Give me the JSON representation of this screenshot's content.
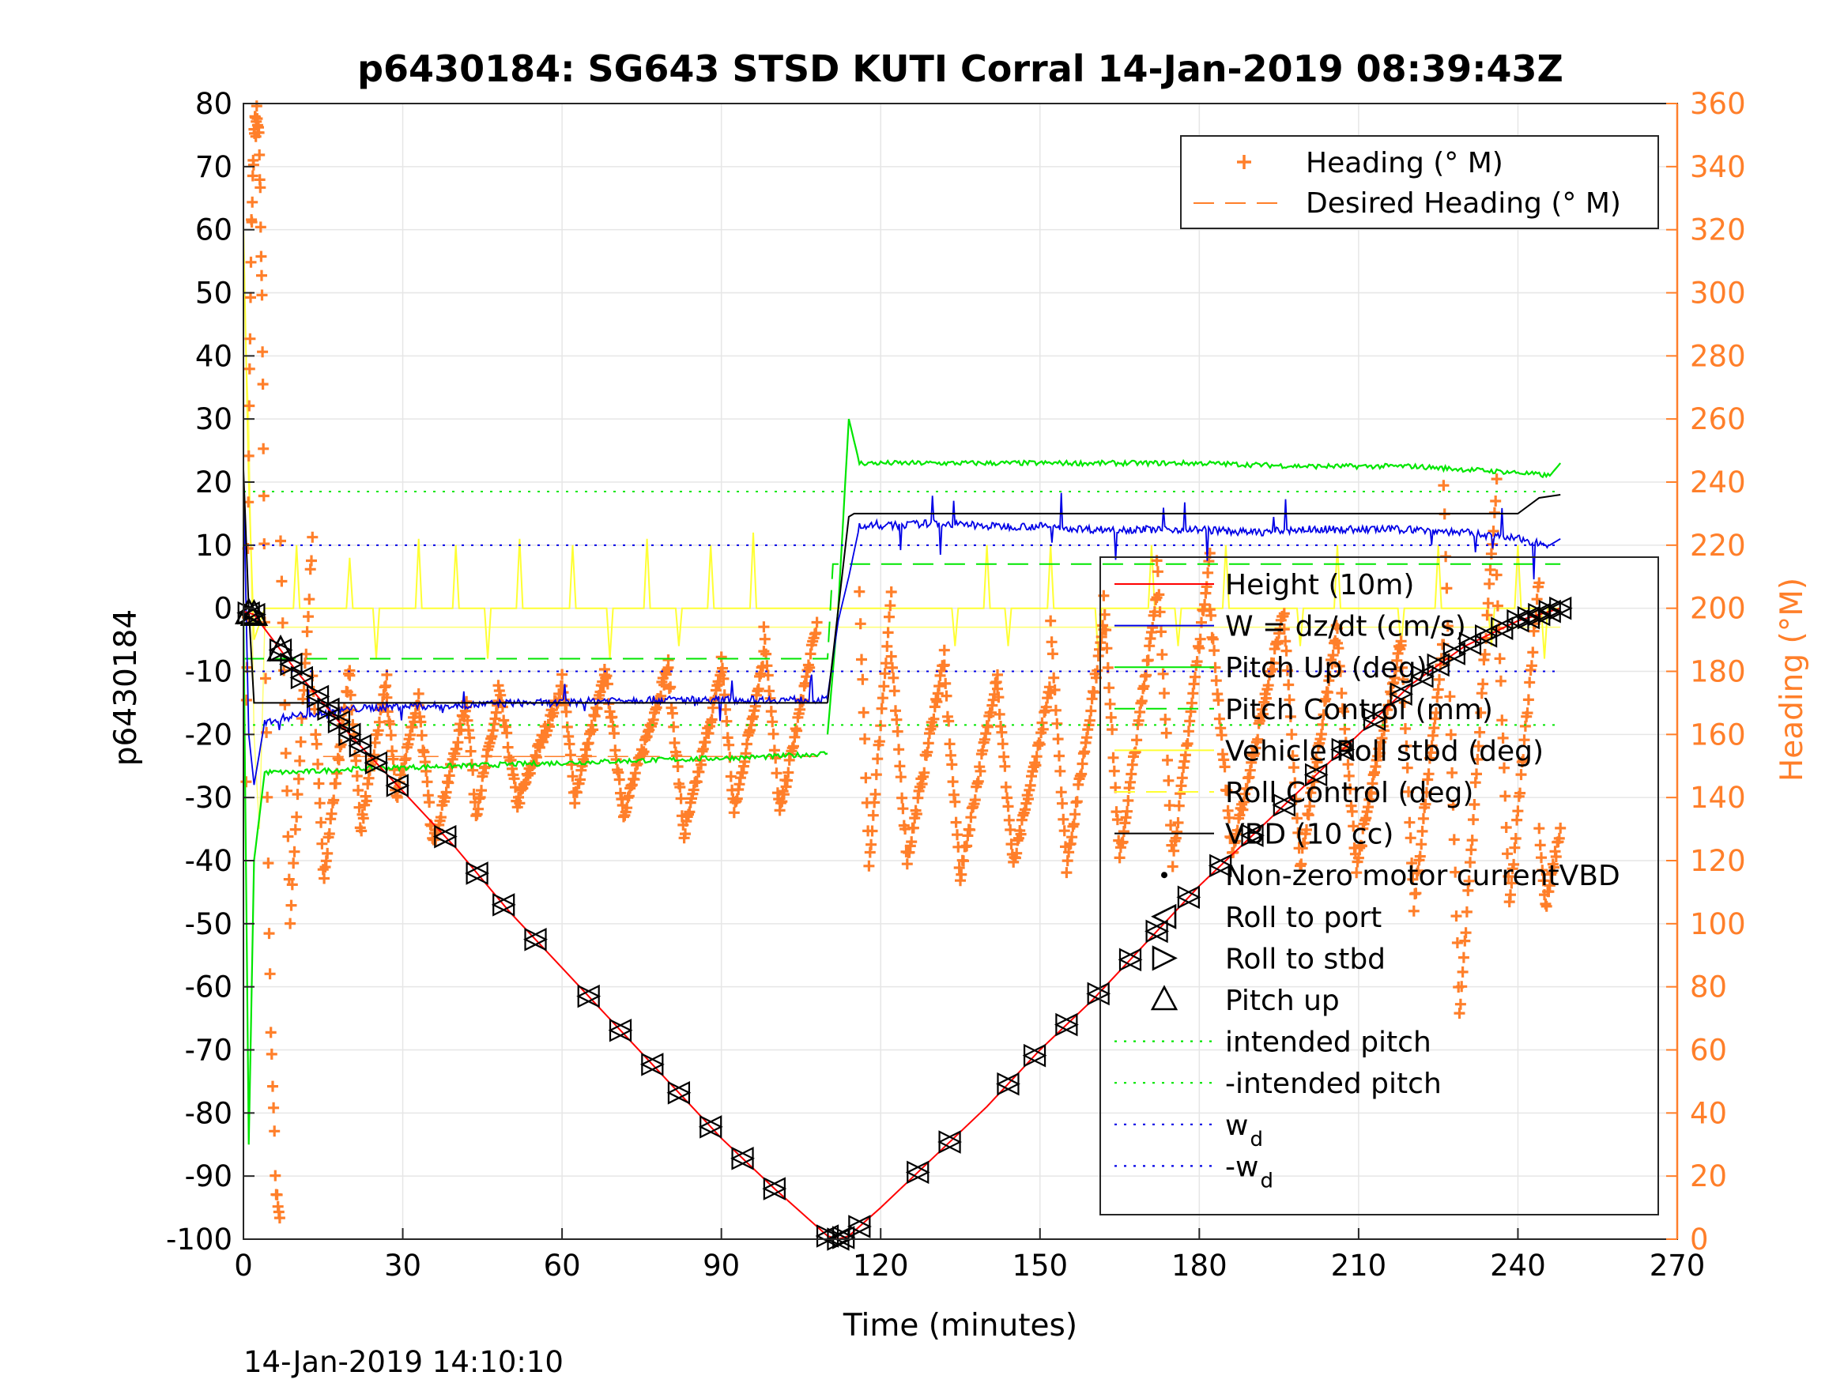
{
  "chart_data": {
    "type": "line",
    "title": "p6430184: SG643 STSD KUTI Corral 14-Jan-2019 08:39:43Z",
    "xlabel": "Time (minutes)",
    "ylabel": "p6430184",
    "ylabel_right": "Heading (°M)",
    "footer": "14-Jan-2019 14:10:10",
    "xlim": [
      0,
      270
    ],
    "ylim": [
      -100,
      80
    ],
    "ylim_right": [
      0,
      360
    ],
    "xticks": [
      "0",
      "30",
      "60",
      "90",
      "120",
      "150",
      "180",
      "210",
      "240",
      "270"
    ],
    "yticks": [
      "80",
      "70",
      "60",
      "50",
      "40",
      "30",
      "20",
      "10",
      "0",
      "-10",
      "-20",
      "-30",
      "-40",
      "-50",
      "-60",
      "-70",
      "-80",
      "-90",
      "-100"
    ],
    "yticks_right": [
      "360",
      "340",
      "320",
      "300",
      "280",
      "260",
      "240",
      "220",
      "200",
      "180",
      "160",
      "140",
      "120",
      "100",
      "80",
      "60",
      "40",
      "20",
      "0"
    ],
    "grid": true,
    "colors": {
      "heading": "#ff7f2a",
      "height": "#ff0000",
      "w": "#0000e6",
      "pitch": "#00e600",
      "roll": "#ffff33",
      "vbd": "#000000",
      "axis_right": "#ff7f2a"
    },
    "legend_top": {
      "placement": "top-right",
      "entries": [
        "Heading (° M)",
        "Desired Heading (° M)"
      ]
    },
    "legend_main": {
      "placement": "right",
      "entries": [
        "Height (10m)",
        "W = dz/dt (cm/s)",
        "Pitch Up (deg)",
        "Pitch Control (mm)",
        "Vehicle Roll stbd (deg)",
        "Roll Control (deg)",
        "VBD (10 cc)",
        "Non-zero motor currentVBD",
        "Roll to port",
        "Roll to stbd",
        "Pitch up",
        "intended pitch",
        "-intended pitch",
        "w",
        "-w"
      ],
      "subscript": "d"
    },
    "height_path": [
      [
        0,
        -0.5
      ],
      [
        2,
        -1
      ],
      [
        10,
        -10
      ],
      [
        20,
        -20
      ],
      [
        30,
        -29
      ],
      [
        40,
        -38
      ],
      [
        50,
        -48
      ],
      [
        60,
        -57
      ],
      [
        70,
        -66
      ],
      [
        80,
        -75
      ],
      [
        90,
        -84
      ],
      [
        100,
        -92
      ],
      [
        110,
        -99.5
      ],
      [
        112,
        -100
      ],
      [
        114,
        -99.5
      ],
      [
        120,
        -95
      ],
      [
        130,
        -87
      ],
      [
        140,
        -79
      ],
      [
        150,
        -70
      ],
      [
        160,
        -62
      ],
      [
        170,
        -53
      ],
      [
        180,
        -44
      ],
      [
        190,
        -36
      ],
      [
        200,
        -28
      ],
      [
        210,
        -20
      ],
      [
        220,
        -12
      ],
      [
        230,
        -6
      ],
      [
        240,
        -2
      ],
      [
        248,
        0
      ]
    ],
    "marker_times": [
      1,
      2,
      7,
      9,
      11,
      14,
      16,
      18,
      20,
      22,
      25,
      29,
      38,
      44,
      49,
      55,
      65,
      71,
      77,
      82,
      88,
      94,
      100,
      110,
      112,
      113,
      116,
      127,
      133,
      144,
      149,
      155,
      161,
      167,
      172,
      178,
      184,
      190,
      196,
      202,
      207,
      213,
      218,
      222,
      225,
      228,
      231,
      234,
      237,
      240,
      242,
      244,
      246,
      248
    ],
    "w_segments": [
      {
        "x": [
          0,
          1,
          2,
          4,
          10,
          20,
          30,
          40,
          50,
          60,
          70,
          80,
          90,
          100,
          110
        ],
        "y": [
          20,
          -20,
          -28,
          -18,
          -17,
          -16,
          -15.5,
          -15.5,
          -15,
          -15,
          -14.5,
          -14.5,
          -14.5,
          -14.5,
          -14.5
        ]
      },
      {
        "x": [
          110,
          112,
          114,
          116,
          120,
          130,
          140,
          150,
          160,
          170,
          180,
          190,
          200,
          210,
          220,
          230,
          240,
          246,
          248
        ],
        "y": [
          -14,
          -2,
          5,
          13,
          13,
          13.5,
          13,
          13,
          12.5,
          12.5,
          12.5,
          12,
          12.5,
          12.5,
          12.5,
          12,
          11,
          10,
          11
        ]
      }
    ],
    "pitch_segments": [
      {
        "x": [
          0,
          1,
          2,
          4,
          10,
          20,
          40,
          60,
          80,
          100,
          110
        ],
        "y": [
          0,
          -85,
          -40,
          -26,
          -26,
          -25.5,
          -25,
          -24.5,
          -24,
          -23.5,
          -23
        ]
      },
      {
        "x": [
          110,
          112,
          114,
          116,
          120,
          140,
          160,
          180,
          200,
          220,
          240,
          246,
          248
        ],
        "y": [
          -20,
          0,
          30,
          23,
          23,
          23,
          23,
          23,
          22.5,
          22.5,
          21.5,
          21,
          23
        ]
      }
    ],
    "pitch_control": {
      "x": [
        0,
        110,
        111,
        248
      ],
      "y": [
        -8,
        -8,
        7,
        7
      ]
    },
    "intended_pitch": 18.5,
    "wd": 10,
    "vbd_segments": [
      {
        "x": [
          0,
          1,
          2,
          110
        ],
        "y": [
          22,
          0,
          -15,
          -15
        ]
      },
      {
        "x": [
          110,
          114,
          115,
          200,
          240,
          244,
          248
        ],
        "y": [
          -15,
          14.5,
          15,
          15,
          15,
          17.5,
          18
        ]
      }
    ],
    "roll_spikes": [
      {
        "t": 10,
        "v": 10
      },
      {
        "t": 20,
        "v": 8
      },
      {
        "t": 25,
        "v": -8
      },
      {
        "t": 33,
        "v": 11
      },
      {
        "t": 40,
        "v": 10
      },
      {
        "t": 46,
        "v": -8
      },
      {
        "t": 52,
        "v": 11
      },
      {
        "t": 62,
        "v": 10
      },
      {
        "t": 69,
        "v": -8
      },
      {
        "t": 76,
        "v": 11
      },
      {
        "t": 82,
        "v": -6
      },
      {
        "t": 88,
        "v": 10
      },
      {
        "t": 96,
        "v": 12
      },
      {
        "t": 134,
        "v": -6
      },
      {
        "t": 140,
        "v": 10
      },
      {
        "t": 144,
        "v": -6
      },
      {
        "t": 152,
        "v": 10
      },
      {
        "t": 161,
        "v": -8
      },
      {
        "t": 171,
        "v": 10
      },
      {
        "t": 176,
        "v": -6
      },
      {
        "t": 185,
        "v": 10
      },
      {
        "t": 199,
        "v": -6
      },
      {
        "t": 206,
        "v": 10
      },
      {
        "t": 218,
        "v": -6
      },
      {
        "t": 225,
        "v": 10
      },
      {
        "t": 235,
        "v": -6
      },
      {
        "t": 240,
        "v": 10
      },
      {
        "t": 245,
        "v": -8
      }
    ],
    "heading_start": [
      [
        0.5,
        150
      ],
      [
        1,
        250
      ],
      [
        1.5,
        320
      ],
      [
        2,
        350
      ],
      [
        2.5,
        355
      ],
      [
        3,
        345
      ],
      [
        3.5,
        300
      ],
      [
        4,
        200
      ],
      [
        5,
        80
      ],
      [
        6,
        20
      ],
      [
        7,
        5
      ]
    ],
    "heading_waves": [
      {
        "t0": 7,
        "t1": 13,
        "lo": 100,
        "hi": 222
      },
      {
        "t0": 13,
        "t1": 20,
        "lo": 115,
        "hi": 180
      },
      {
        "t0": 20,
        "t1": 27,
        "lo": 130,
        "hi": 178
      },
      {
        "t0": 27,
        "t1": 33,
        "lo": 140,
        "hi": 172
      },
      {
        "t0": 33,
        "t1": 42,
        "lo": 125,
        "hi": 170
      },
      {
        "t0": 42,
        "t1": 48,
        "lo": 135,
        "hi": 170
      },
      {
        "t0": 48,
        "t1": 60,
        "lo": 138,
        "hi": 175
      },
      {
        "t0": 60,
        "t1": 68,
        "lo": 140,
        "hi": 178
      },
      {
        "t0": 68,
        "t1": 80,
        "lo": 135,
        "hi": 182
      },
      {
        "t0": 80,
        "t1": 90,
        "lo": 128,
        "hi": 180
      },
      {
        "t0": 90,
        "t1": 98,
        "lo": 135,
        "hi": 185
      },
      {
        "t0": 98,
        "t1": 108,
        "lo": 135,
        "hi": 195
      },
      {
        "t0": 116,
        "t1": 122,
        "lo": 118,
        "hi": 205
      },
      {
        "t0": 122,
        "t1": 132,
        "lo": 120,
        "hi": 185
      },
      {
        "t0": 132,
        "t1": 142,
        "lo": 115,
        "hi": 180
      },
      {
        "t0": 142,
        "t1": 152,
        "lo": 118,
        "hi": 175
      },
      {
        "t0": 152,
        "t1": 162,
        "lo": 118,
        "hi": 195
      },
      {
        "t0": 162,
        "t1": 172,
        "lo": 120,
        "hi": 205
      },
      {
        "t0": 172,
        "t1": 182,
        "lo": 120,
        "hi": 217
      },
      {
        "t0": 182,
        "t1": 196,
        "lo": 122,
        "hi": 200
      },
      {
        "t0": 196,
        "t1": 206,
        "lo": 118,
        "hi": 195
      },
      {
        "t0": 206,
        "t1": 218,
        "lo": 118,
        "hi": 190
      },
      {
        "t0": 218,
        "t1": 226,
        "lo": 105,
        "hi": 190
      },
      {
        "t0": 226,
        "t1": 236,
        "lo": 70,
        "hi": 240
      },
      {
        "t0": 236,
        "t1": 244,
        "lo": 105,
        "hi": 210
      },
      {
        "t0": 244,
        "t1": 248,
        "lo": 105,
        "hi": 130
      }
    ]
  }
}
